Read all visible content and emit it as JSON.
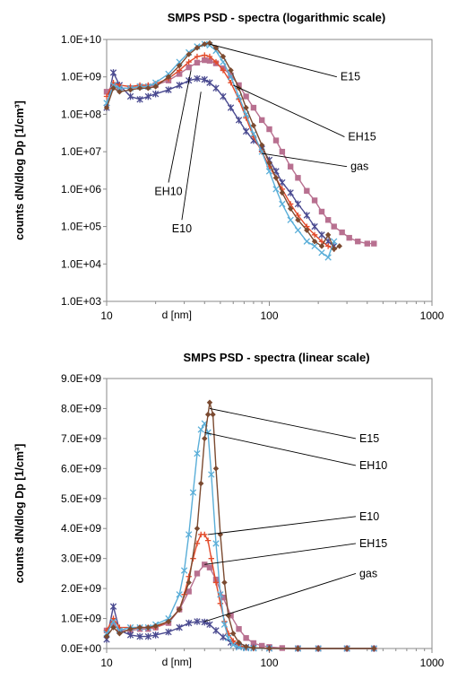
{
  "chart_data": [
    {
      "type": "line",
      "title": "SMPS PSD - spectra (logarithmic scale)",
      "xlabel": "d [nm]",
      "ylabel": "counts dN/dlog Dp [1/cm³]",
      "xscale": "log",
      "yscale": "log",
      "xlim": [
        10,
        1000
      ],
      "ylim": [
        1000,
        10000000000
      ],
      "xticks": [
        10,
        100,
        1000
      ],
      "xtick_labels": [
        "10",
        "100",
        "1000"
      ],
      "yticks": [
        1000,
        10000,
        100000,
        1000000,
        10000000,
        100000000,
        1000000000,
        10000000000
      ],
      "ytick_labels": [
        "1.0E+03",
        "1.0E+04",
        "1.0E+05",
        "1.0E+06",
        "1.0E+07",
        "1.0E+08",
        "1.0E+09",
        "1.0E+10"
      ],
      "grid": false,
      "annotations": [
        {
          "text": "E15",
          "series": "E15",
          "at": [
            43,
            7500000000
          ],
          "label_at": [
            260,
            1000000000
          ]
        },
        {
          "text": "EH15",
          "series": "EH15",
          "at": [
            60,
            600000000
          ],
          "label_at": [
            290,
            25000000
          ]
        },
        {
          "text": "gas",
          "series": "gas",
          "at": [
            90,
            9000000
          ],
          "label_at": [
            300,
            4000000
          ]
        },
        {
          "text": "EH10",
          "series": "EH10",
          "at": [
            33,
            1500000000
          ],
          "label_at": [
            24,
            1500000
          ]
        },
        {
          "text": "E10",
          "series": "E10",
          "at": [
            38,
            400000000
          ],
          "label_at": [
            29,
            150000
          ]
        }
      ],
      "series": [
        {
          "name": "E15",
          "color": "#7b4a30",
          "marker": "diamond",
          "x": [
            10,
            11,
            12,
            14,
            16,
            18,
            20,
            24,
            28,
            32,
            36,
            40,
            43,
            47,
            52,
            58,
            65,
            72,
            80,
            90,
            100,
            110,
            120,
            135,
            150,
            170,
            190,
            210,
            230,
            250,
            270
          ],
          "y": [
            150000000,
            500000000,
            400000000,
            450000000,
            500000000,
            500000000,
            550000000,
            1000000000,
            2000000000,
            4000000000,
            6000000000,
            7500000000,
            8000000000,
            6000000000,
            3500000000,
            1500000000,
            500000000,
            150000000,
            50000000,
            15000000,
            5000000,
            2000000,
            800000,
            300000,
            150000,
            80000,
            40000,
            30000,
            60000,
            25000,
            30000
          ]
        },
        {
          "name": "EH10",
          "color": "#5aaed8",
          "marker": "x",
          "x": [
            10,
            11,
            12,
            14,
            16,
            18,
            20,
            24,
            28,
            32,
            36,
            40,
            43,
            47,
            52,
            58,
            65,
            72,
            80,
            90,
            100,
            110,
            120,
            135,
            150,
            170,
            190,
            210,
            230,
            250
          ],
          "y": [
            200000000,
            600000000,
            500000000,
            500000000,
            550000000,
            550000000,
            700000000,
            1200000000,
            2500000000,
            4500000000,
            6500000000,
            7500000000,
            7000000000,
            5000000000,
            2500000000,
            1000000000,
            300000000,
            100000000,
            30000000,
            10000000,
            3000000,
            1000000,
            400000,
            150000,
            80000,
            40000,
            30000,
            20000,
            15000,
            40000
          ]
        },
        {
          "name": "E10",
          "color": "#e24a2a",
          "marker": "plus",
          "x": [
            10,
            11,
            12,
            14,
            16,
            18,
            20,
            24,
            28,
            32,
            36,
            40,
            43,
            47,
            52,
            58,
            65,
            72,
            80,
            90,
            100,
            110,
            120,
            135,
            150,
            170,
            190,
            210,
            230,
            250
          ],
          "y": [
            300000000,
            700000000,
            600000000,
            550000000,
            600000000,
            600000000,
            650000000,
            900000000,
            1500000000,
            2500000000,
            3500000000,
            3800000000,
            3500000000,
            2500000000,
            1500000000,
            700000000,
            250000000,
            80000000,
            25000000,
            10000000,
            4000000,
            2000000,
            1000000,
            400000,
            200000,
            100000,
            60000,
            40000,
            30000,
            25000
          ]
        },
        {
          "name": "EH15",
          "color": "#b87090",
          "marker": "square",
          "x": [
            10,
            11,
            12,
            14,
            16,
            18,
            20,
            24,
            28,
            32,
            36,
            40,
            43,
            47,
            52,
            58,
            65,
            72,
            80,
            90,
            100,
            110,
            120,
            135,
            150,
            170,
            190,
            210,
            230,
            250,
            280,
            310,
            350,
            400,
            440
          ],
          "y": [
            400000000,
            600000000,
            500000000,
            500000000,
            550000000,
            550000000,
            600000000,
            800000000,
            1200000000,
            1800000000,
            2400000000,
            2800000000,
            2700000000,
            2300000000,
            1700000000,
            1100000000,
            600000000,
            300000000,
            150000000,
            70000000,
            40000000,
            20000000,
            10000000,
            4000000,
            2000000,
            900000,
            500000,
            250000,
            150000,
            100000,
            70000,
            50000,
            40000,
            35000,
            35000
          ]
        },
        {
          "name": "gas",
          "color": "#4a4a90",
          "marker": "star",
          "x": [
            10,
            11,
            12,
            14,
            16,
            18,
            20,
            24,
            28,
            32,
            36,
            40,
            43,
            47,
            52,
            58,
            65,
            72,
            80,
            90,
            100,
            110,
            120,
            135,
            150,
            170,
            190,
            210,
            230,
            250
          ],
          "y": [
            150000000,
            1300000000,
            600000000,
            300000000,
            250000000,
            300000000,
            350000000,
            450000000,
            600000000,
            800000000,
            900000000,
            850000000,
            700000000,
            500000000,
            300000000,
            150000000,
            70000000,
            35000000,
            20000000,
            12000000,
            6000000,
            3000000,
            1500000,
            800000,
            400000,
            200000,
            100000,
            60000,
            40000,
            30000
          ]
        }
      ]
    },
    {
      "type": "line",
      "title": "SMPS PSD - spectra (linear scale)",
      "xlabel": "d [nm]",
      "ylabel": "counts dN/dlog Dp [1/cm³]",
      "xscale": "log",
      "yscale": "linear",
      "xlim": [
        10,
        1000
      ],
      "ylim": [
        0,
        9000000000
      ],
      "xticks": [
        10,
        100,
        1000
      ],
      "xtick_labels": [
        "10",
        "100",
        "1000"
      ],
      "yticks": [
        0,
        1000000000,
        2000000000,
        3000000000,
        4000000000,
        5000000000,
        6000000000,
        7000000000,
        8000000000,
        9000000000
      ],
      "ytick_labels": [
        "0.0E+00",
        "1.0E+09",
        "2.0E+09",
        "3.0E+09",
        "4.0E+09",
        "5.0E+09",
        "6.0E+09",
        "7.0E+09",
        "8.0E+09",
        "9.0E+09"
      ],
      "grid": false,
      "annotations": [
        {
          "text": "E15",
          "series": "E15",
          "at": [
            43,
            8000000000
          ],
          "label_at": [
            340,
            7000000000
          ]
        },
        {
          "text": "EH10",
          "series": "EH10",
          "at": [
            40,
            7200000000
          ],
          "label_at": [
            340,
            6100000000
          ]
        },
        {
          "text": "E10",
          "series": "E10",
          "at": [
            42,
            3800000000
          ],
          "label_at": [
            340,
            4400000000
          ]
        },
        {
          "text": "EH15",
          "series": "EH15",
          "at": [
            40,
            2800000000
          ],
          "label_at": [
            340,
            3500000000
          ]
        },
        {
          "text": "gas",
          "series": "gas",
          "at": [
            40,
            900000000
          ],
          "label_at": [
            340,
            2500000000
          ]
        }
      ],
      "series": [
        {
          "name": "E15",
          "color": "#7b4a30",
          "marker": "diamond",
          "x": [
            10,
            11,
            12,
            14,
            16,
            18,
            20,
            24,
            28,
            32,
            36,
            38,
            40,
            42,
            43,
            45,
            47,
            50,
            53,
            56,
            60,
            65,
            72,
            80,
            100,
            150,
            200,
            300,
            440
          ],
          "y": [
            400000000,
            700000000,
            500000000,
            650000000,
            700000000,
            700000000,
            750000000,
            900000000,
            1300000000,
            2200000000,
            4000000000,
            5500000000,
            7000000000,
            7800000000,
            8200000000,
            7800000000,
            6000000000,
            3800000000,
            2200000000,
            1100000000,
            500000000,
            200000000,
            60000000,
            20000000,
            5000000,
            0,
            0,
            0,
            0
          ]
        },
        {
          "name": "EH10",
          "color": "#5aaed8",
          "marker": "x",
          "x": [
            10,
            11,
            12,
            14,
            16,
            18,
            20,
            24,
            28,
            30,
            32,
            34,
            36,
            38,
            40,
            42,
            44,
            47,
            50,
            53,
            56,
            60,
            65,
            72,
            80,
            100,
            150,
            200,
            300,
            440
          ],
          "y": [
            500000000,
            900000000,
            600000000,
            700000000,
            700000000,
            700000000,
            800000000,
            1000000000,
            1800000000,
            2600000000,
            3800000000,
            5200000000,
            6500000000,
            7300000000,
            7500000000,
            7200000000,
            5800000000,
            3500000000,
            1800000000,
            800000000,
            350000000,
            120000000,
            40000000,
            10000000,
            3000000,
            0,
            0,
            0,
            0,
            0
          ]
        },
        {
          "name": "E10",
          "color": "#e24a2a",
          "marker": "plus",
          "x": [
            10,
            11,
            12,
            14,
            16,
            18,
            20,
            24,
            28,
            30,
            32,
            34,
            36,
            38,
            40,
            42,
            44,
            47,
            50,
            53,
            56,
            60,
            65,
            72,
            80,
            100,
            150,
            200,
            300,
            440
          ],
          "y": [
            600000000,
            1000000000,
            700000000,
            700000000,
            700000000,
            700000000,
            700000000,
            900000000,
            1300000000,
            1800000000,
            2400000000,
            3000000000,
            3500000000,
            3800000000,
            3800000000,
            3600000000,
            3000000000,
            2200000000,
            1500000000,
            900000000,
            500000000,
            250000000,
            100000000,
            40000000,
            15000000,
            0,
            0,
            0,
            0,
            0
          ]
        },
        {
          "name": "EH15",
          "color": "#b87090",
          "marker": "square",
          "x": [
            10,
            11,
            12,
            14,
            16,
            18,
            20,
            24,
            28,
            32,
            36,
            40,
            43,
            47,
            52,
            58,
            65,
            72,
            80,
            90,
            100,
            120,
            150,
            200,
            300,
            440
          ],
          "y": [
            600000000,
            800000000,
            600000000,
            600000000,
            650000000,
            650000000,
            700000000,
            850000000,
            1300000000,
            1900000000,
            2500000000,
            2800000000,
            2700000000,
            2300000000,
            1700000000,
            1100000000,
            650000000,
            350000000,
            180000000,
            90000000,
            50000000,
            15000000,
            4000000,
            0,
            0,
            0
          ]
        },
        {
          "name": "gas",
          "color": "#4a4a90",
          "marker": "star",
          "x": [
            10,
            11,
            12,
            14,
            16,
            18,
            20,
            24,
            28,
            32,
            36,
            40,
            43,
            47,
            52,
            58,
            65,
            72,
            80,
            100,
            150,
            200,
            300,
            440
          ],
          "y": [
            300000000,
            1400000000,
            600000000,
            450000000,
            400000000,
            400000000,
            450000000,
            550000000,
            700000000,
            850000000,
            900000000,
            880000000,
            800000000,
            600000000,
            380000000,
            200000000,
            90000000,
            40000000,
            20000000,
            5000000,
            0,
            0,
            0,
            0
          ]
        }
      ]
    }
  ]
}
